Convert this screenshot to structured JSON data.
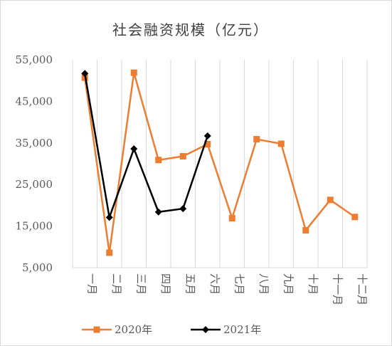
{
  "chart_data": {
    "type": "line",
    "title": "社会融资规模（亿元）",
    "categories": [
      "一月",
      "二月",
      "三月",
      "四月",
      "五月",
      "六月",
      "七月",
      "八月",
      "九月",
      "十月",
      "十一月",
      "十二月"
    ],
    "y_ticks": [
      "5,000",
      "15,000",
      "25,000",
      "35,000",
      "45,000",
      "55,000"
    ],
    "ylim": [
      5000,
      55000
    ],
    "grid": "vertical",
    "legend_position": "bottom-left",
    "series": [
      {
        "name": "2020年",
        "color": "#ed7d31",
        "marker": "square",
        "values": [
          50700,
          8600,
          51900,
          30900,
          31800,
          34700,
          16900,
          35900,
          34800,
          14000,
          21300,
          17200
        ]
      },
      {
        "name": "2021年",
        "color": "#000000",
        "marker": "diamond",
        "values": [
          51700,
          17100,
          33600,
          18400,
          19200,
          36700,
          null,
          null,
          null,
          null,
          null,
          null
        ]
      }
    ]
  }
}
